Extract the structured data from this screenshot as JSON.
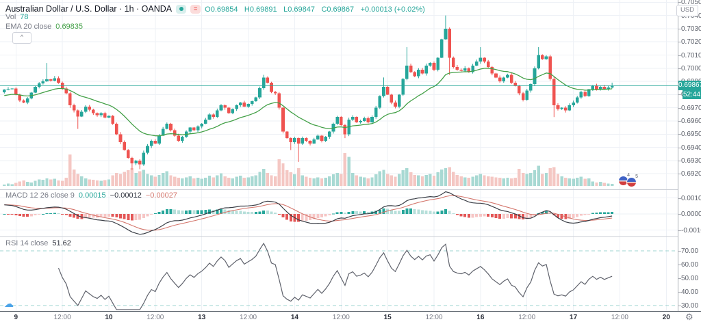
{
  "legend": {
    "symbol": "Australian Dollar / U.S. Dollar · 1h · OANDA",
    "ohlc": {
      "open": "O0.69854",
      "high": "H0.69891",
      "low": "L0.69847",
      "close": "C0.69867",
      "change": "+0.00013 (+0.02%)"
    },
    "vol_label": "Vol",
    "vol_value": "78",
    "ema_label": "EMA 20 close",
    "ema_value": "0.69835",
    "macd_label": "MACD 12 26 close 9",
    "macd_hist": "0.00015",
    "macd_line": "−0.00012",
    "macd_signal": "−0.00027",
    "rsi_label": "RSI 14 close",
    "rsi_value": "51.62"
  },
  "price_axis": {
    "currency": "USD",
    "price_badge": "0.69867",
    "countdown": "52:44"
  },
  "event_markers": [
    {
      "count": "4"
    },
    {
      "count": "5"
    }
  ],
  "colors": {
    "up": "#26a69a",
    "down": "#ef5350",
    "vol_up": "#a8d9d3",
    "vol_down": "#f4c7c3",
    "ema": "#43a047",
    "price_line": "#26a69a",
    "macd_line": "#3a3e46",
    "macd_signal": "#d4766c",
    "hist_pos_strong": "#26a69a",
    "hist_pos_weak": "#b7dfda",
    "hist_neg_strong": "#e35656",
    "hist_neg_weak": "#f6c6c5",
    "rsi_line": "#5f626c",
    "rsi_band": "#4db6ac",
    "grid": "#eef1f6",
    "badge": "#26a69a"
  },
  "chart_data": {
    "type": "candlestick",
    "title": "Australian Dollar / U.S. Dollar · 1h · OANDA",
    "interval": "1h",
    "current_price": 0.69867,
    "ohlc_current": {
      "o": 0.69854,
      "h": 0.69891,
      "l": 0.69847,
      "c": 0.69867
    },
    "price_levels": [
      0.705,
      0.704,
      0.703,
      0.702,
      0.701,
      0.7,
      0.699,
      0.698,
      0.697,
      0.696,
      0.695,
      0.694,
      0.693,
      0.692
    ],
    "ylim": [
      0.6917,
      0.7052
    ],
    "macd_levels": [
      0.001,
      0,
      -0.001
    ],
    "rsi_levels": [
      70,
      60,
      50,
      40,
      30
    ],
    "rsi_bands": [
      70,
      30
    ],
    "time_labels": [
      "9",
      "12:00",
      "10",
      "12:00",
      "13",
      "12:00",
      "14",
      "12:00",
      "15",
      "12:00",
      "16",
      "12:00",
      "17",
      "12:00",
      "20"
    ],
    "ema_period": 20,
    "macd_params": [
      12,
      26,
      9
    ],
    "rsi_period": 14,
    "vol_max": 1300,
    "closes": [
      0.69838,
      0.69842,
      0.69845,
      0.698,
      0.69755,
      0.6974,
      0.6977,
      0.69815,
      0.6986,
      0.69885,
      0.699,
      0.69915,
      0.69905,
      0.69925,
      0.6989,
      0.69845,
      0.6981,
      0.6972,
      0.6968,
      0.69635,
      0.6967,
      0.6971,
      0.69685,
      0.6966,
      0.69645,
      0.6966,
      0.69625,
      0.6964,
      0.6958,
      0.695,
      0.6944,
      0.6938,
      0.6932,
      0.6928,
      0.693,
      0.6927,
      0.6936,
      0.6941,
      0.6945,
      0.6943,
      0.6949,
      0.6954,
      0.6958,
      0.6953,
      0.6949,
      0.6945,
      0.6948,
      0.6952,
      0.6955,
      0.6953,
      0.6956,
      0.6958,
      0.6961,
      0.6965,
      0.6963,
      0.6968,
      0.6972,
      0.697,
      0.6966,
      0.6969,
      0.6972,
      0.6974,
      0.6971,
      0.6973,
      0.6975,
      0.6978,
      0.6985,
      0.6993,
      0.6989,
      0.6982,
      0.6981,
      0.697,
      0.6952,
      0.6947,
      0.6944,
      0.6947,
      0.6943,
      0.6947,
      0.6945,
      0.6943,
      0.6946,
      0.6949,
      0.6945,
      0.6948,
      0.6952,
      0.6958,
      0.6963,
      0.6957,
      0.695,
      0.6961,
      0.6963,
      0.6959,
      0.696,
      0.6962,
      0.6959,
      0.6963,
      0.697,
      0.6979,
      0.6986,
      0.698,
      0.6974,
      0.6971,
      0.698,
      0.6992,
      0.7002,
      0.6997,
      0.6994,
      0.6999,
      0.6996,
      0.7002,
      0.7004,
      0.6999,
      0.7008,
      0.7022,
      0.703,
      0.7008,
      0.7001,
      0.6999,
      0.6998,
      0.7,
      0.6997,
      0.7002,
      0.7005,
      0.7008,
      0.7005,
      0.7001,
      0.6996,
      0.6993,
      0.699,
      0.6993,
      0.6995,
      0.6989,
      0.6987,
      0.6981,
      0.6976,
      0.6983,
      0.6988,
      0.7,
      0.701,
      0.7007,
      0.7009,
      0.6992,
      0.6972,
      0.6969,
      0.697,
      0.6968,
      0.6972,
      0.6974,
      0.6978,
      0.6982,
      0.6979,
      0.6984,
      0.6987,
      0.6984,
      0.6986,
      0.6984,
      0.69854,
      0.69867
    ],
    "volumes": [
      60,
      90,
      70,
      120,
      180,
      220,
      160,
      140,
      200,
      260,
      240,
      300,
      260,
      280,
      220,
      200,
      320,
      1250,
      650,
      480,
      380,
      300,
      260,
      240,
      220,
      200,
      230,
      260,
      420,
      520,
      480,
      560,
      620,
      700,
      520,
      580,
      640,
      480,
      420,
      360,
      440,
      520,
      580,
      420,
      360,
      320,
      300,
      340,
      380,
      300,
      320,
      280,
      320,
      400,
      340,
      420,
      500,
      380,
      320,
      300,
      360,
      400,
      320,
      340,
      380,
      420,
      560,
      680,
      520,
      420,
      380,
      1050,
      900,
      620,
      540,
      460,
      700,
      420,
      360,
      320,
      300,
      340,
      300,
      320,
      380,
      460,
      520,
      480,
      1300,
      1150,
      520,
      420,
      360,
      340,
      300,
      340,
      460,
      580,
      640,
      480,
      420,
      360,
      480,
      620,
      700,
      540,
      440,
      420,
      380,
      440,
      480,
      400,
      540,
      650,
      700,
      750,
      560,
      440,
      380,
      340,
      320,
      360,
      420,
      480,
      420,
      380,
      360,
      340,
      320,
      300,
      320,
      300,
      320,
      680,
      520,
      480,
      520,
      620,
      800,
      480,
      520,
      700,
      750,
      480,
      380,
      320,
      300,
      280,
      320,
      360,
      280,
      300,
      180,
      140,
      160,
      120,
      90,
      78
    ],
    "wick_overrides": {
      "11": {
        "h": 0.7004
      },
      "17": {
        "l": 0.697
      },
      "19": {
        "l": 0.6954
      },
      "33": {
        "l": 0.6923
      },
      "35": {
        "l": 0.69235
      },
      "67": {
        "h": 0.6995
      },
      "74": {
        "l": 0.6938
      },
      "76": {
        "l": 0.6929
      },
      "88": {
        "l": 0.6947
      },
      "98": {
        "h": 0.6993
      },
      "104": {
        "h": 0.7016
      },
      "114": {
        "h": 0.704
      },
      "115": {
        "l": 0.6995
      },
      "123": {
        "h": 0.7016
      },
      "138": {
        "h": 0.7016
      },
      "142": {
        "l": 0.6963
      },
      "157": {
        "h": 0.69891,
        "l": 0.69847
      }
    }
  }
}
